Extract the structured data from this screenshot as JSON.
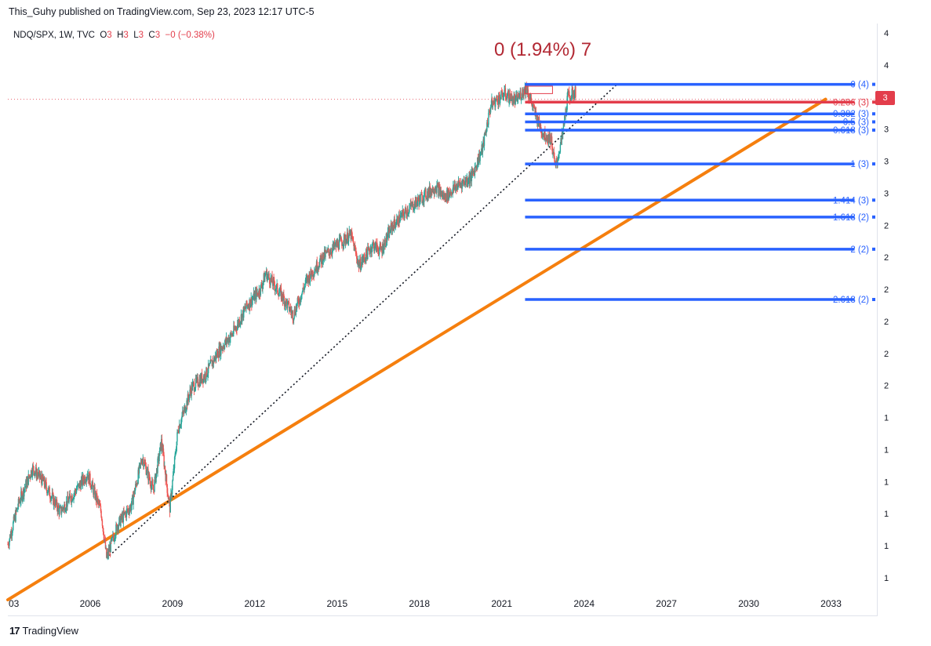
{
  "header": {
    "published": "This_Guhy published on TradingView.com, Sep 23, 2023 12:17 UTC-5"
  },
  "legend": {
    "symbol": "NDQ/SPX, 1W, TVC",
    "o_label": "O",
    "o_value": "3",
    "h_label": "H",
    "h_value": "3",
    "l_label": "L",
    "l_value": "3",
    "c_label": "C",
    "c_value": "3",
    "change": "−0 (−0.38%)"
  },
  "annotation": {
    "text": "0 (1.94%) 7"
  },
  "price_badge": {
    "value": "3"
  },
  "footer": {
    "brand": "TradingView",
    "logo_icon": "tradingview-logo-icon"
  },
  "colors": {
    "fib_blue": "#2962ff",
    "fib_red": "#e33d4b",
    "trend_orange": "#f57f0e",
    "candle_up": "#26a69a",
    "candle_down": "#ef5350"
  },
  "chart_data": {
    "type": "candlestick",
    "title": "NDQ/SPX, 1W, TVC",
    "x_axis": {
      "ticks": [
        "03",
        "2006",
        "2009",
        "2012",
        "2015",
        "2018",
        "2021",
        "2024",
        "2027",
        "2030",
        "2033"
      ],
      "tick_years": [
        2003,
        2006,
        2009,
        2012,
        2015,
        2018,
        2021,
        2024,
        2027,
        2030,
        2033
      ],
      "range": [
        2003,
        2034.5
      ]
    },
    "y_axis": {
      "ticks": [
        "4",
        "4",
        "3",
        "3",
        "3",
        "3",
        "2",
        "2",
        "2",
        "2",
        "2",
        "2",
        "1",
        "1",
        "1",
        "1",
        "1",
        "1"
      ],
      "scale": "log",
      "range_lo": 0.9,
      "range_hi": 4.3
    },
    "price_path": [
      [
        2003.0,
        1.02
      ],
      [
        2003.4,
        1.15
      ],
      [
        2003.9,
        1.27
      ],
      [
        2004.3,
        1.22
      ],
      [
        2004.9,
        1.12
      ],
      [
        2005.4,
        1.18
      ],
      [
        2005.9,
        1.25
      ],
      [
        2006.4,
        1.12
      ],
      [
        2006.6,
        0.98
      ],
      [
        2007.0,
        1.08
      ],
      [
        2007.5,
        1.14
      ],
      [
        2007.9,
        1.31
      ],
      [
        2008.3,
        1.19
      ],
      [
        2008.6,
        1.37
      ],
      [
        2008.9,
        1.13
      ],
      [
        2009.2,
        1.42
      ],
      [
        2009.7,
        1.6
      ],
      [
        2010.2,
        1.66
      ],
      [
        2010.7,
        1.78
      ],
      [
        2011.2,
        1.87
      ],
      [
        2011.7,
        2.02
      ],
      [
        2012.2,
        2.12
      ],
      [
        2012.4,
        2.22
      ],
      [
        2013.0,
        2.08
      ],
      [
        2013.4,
        1.97
      ],
      [
        2013.9,
        2.18
      ],
      [
        2014.5,
        2.33
      ],
      [
        2015.0,
        2.41
      ],
      [
        2015.5,
        2.48
      ],
      [
        2015.8,
        2.27
      ],
      [
        2016.3,
        2.41
      ],
      [
        2016.6,
        2.37
      ],
      [
        2017.0,
        2.54
      ],
      [
        2017.6,
        2.67
      ],
      [
        2018.2,
        2.78
      ],
      [
        2018.6,
        2.85
      ],
      [
        2018.9,
        2.76
      ],
      [
        2019.4,
        2.86
      ],
      [
        2019.9,
        2.93
      ],
      [
        2020.3,
        3.18
      ],
      [
        2020.6,
        3.6
      ],
      [
        2021.1,
        3.72
      ],
      [
        2021.5,
        3.64
      ],
      [
        2021.9,
        3.79
      ],
      [
        2022.2,
        3.52
      ],
      [
        2022.5,
        3.32
      ],
      [
        2022.8,
        3.26
      ],
      [
        2022.95,
        3.0
      ],
      [
        2023.2,
        3.28
      ],
      [
        2023.4,
        3.68
      ],
      [
        2023.7,
        3.74
      ]
    ],
    "fibonacci": {
      "start_year": 2021.85,
      "label_year": 2033.0,
      "levels": [
        {
          "label": "0 (4)",
          "price": 3.82,
          "color": "#2962ff"
        },
        {
          "label": "0.236 (3)",
          "price": 3.63,
          "color": "#e33d4b"
        },
        {
          "label": "0.382 (3)",
          "price": 3.51,
          "color": "#2962ff"
        },
        {
          "label": "0.5 (3)",
          "price": 3.43,
          "color": "#2962ff"
        },
        {
          "label": "0.618 (3)",
          "price": 3.35,
          "color": "#2962ff"
        },
        {
          "label": "1 (3)",
          "price": 3.04,
          "color": "#2962ff"
        },
        {
          "label": "1.414 (3)",
          "price": 2.74,
          "color": "#2962ff"
        },
        {
          "label": "1.618 (2)",
          "price": 2.61,
          "color": "#2962ff"
        },
        {
          "label": "2 (2)",
          "price": 2.38,
          "color": "#2962ff"
        },
        {
          "label": "2.618 (2)",
          "price": 2.06,
          "color": "#2962ff"
        }
      ]
    },
    "trendlines": [
      {
        "name": "orange-trendline",
        "from": [
          2003.0,
          0.87
        ],
        "to": [
          2032.8,
          3.66
        ],
        "color": "#f57f0e",
        "style": "solid"
      },
      {
        "name": "dotted-trendline",
        "from": [
          2006.6,
          0.98
        ],
        "to": [
          2025.2,
          3.82
        ],
        "color": "#131722",
        "style": "dotted"
      }
    ],
    "price_line": 3.66
  }
}
